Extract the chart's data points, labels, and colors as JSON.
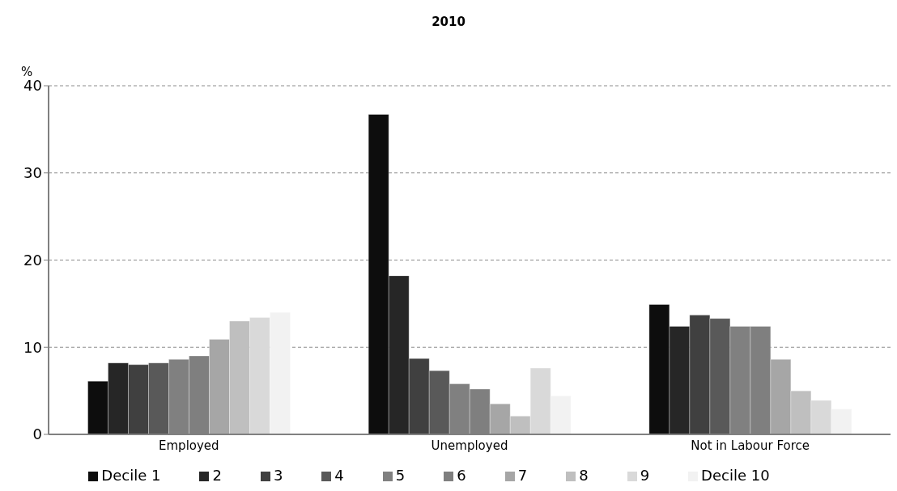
{
  "chart_data": {
    "type": "bar",
    "title": "2010",
    "ylabel": "%",
    "categories": [
      "Employed",
      "Unemployed",
      "Not in Labour Force"
    ],
    "series": [
      {
        "name": "Decile 1",
        "color": "#0d0d0d",
        "values": [
          6.1,
          36.7,
          14.9
        ]
      },
      {
        "name": "2",
        "color": "#262626",
        "values": [
          8.2,
          18.2,
          12.4
        ]
      },
      {
        "name": "3",
        "color": "#404040",
        "values": [
          8.0,
          8.7,
          13.7
        ]
      },
      {
        "name": "4",
        "color": "#595959",
        "values": [
          8.2,
          7.3,
          13.3
        ]
      },
      {
        "name": "5",
        "color": "#808080",
        "values": [
          8.6,
          5.8,
          12.4
        ]
      },
      {
        "name": "6",
        "color": "#7f7f7f",
        "values": [
          9.0,
          5.2,
          12.4
        ]
      },
      {
        "name": "7",
        "color": "#a6a6a6",
        "values": [
          10.9,
          3.5,
          8.6
        ]
      },
      {
        "name": "8",
        "color": "#bfbfbf",
        "values": [
          13.0,
          2.1,
          5.0
        ]
      },
      {
        "name": "9",
        "color": "#d9d9d9",
        "values": [
          13.4,
          7.6,
          3.9
        ]
      },
      {
        "name": "Decile 10",
        "color": "#f2f2f2",
        "values": [
          14.0,
          4.4,
          2.9
        ]
      }
    ],
    "ylim": [
      0,
      40
    ],
    "yticks": [
      0,
      10,
      20,
      30,
      40
    ],
    "grid": "y",
    "legend": "bottom"
  }
}
